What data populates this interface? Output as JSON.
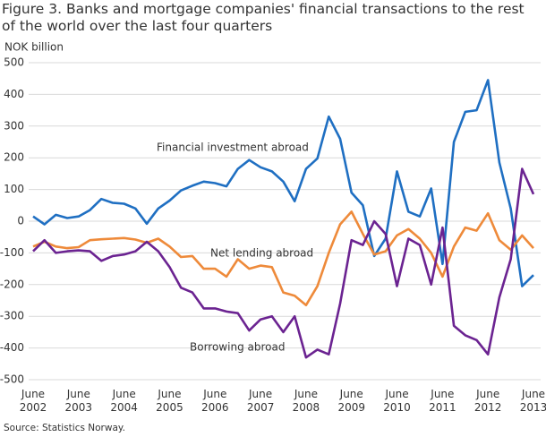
{
  "chart_data": {
    "type": "line",
    "title": "Figure 3. Banks and mortgage companies' financial transactions to the rest of the world over the last four quarters",
    "y_label": "NOK billion",
    "source": "Source: Statistics Norway.",
    "categories": [
      "June 2002",
      null,
      null,
      null,
      "June 2003",
      null,
      null,
      null,
      "June 2004",
      null,
      null,
      null,
      "June 2005",
      null,
      null,
      null,
      "June 2006",
      null,
      null,
      null,
      "June 2007",
      null,
      null,
      null,
      "June 2008",
      null,
      null,
      null,
      "June 2009",
      null,
      null,
      null,
      "June 2010",
      null,
      null,
      null,
      "June 2011",
      null,
      null,
      null,
      "June 2012",
      null,
      null,
      null,
      "June 2013"
    ],
    "series": [
      {
        "name": "Financial investment abroad",
        "color": "#1f6fc2",
        "values": [
          15,
          -10,
          20,
          10,
          15,
          35,
          70,
          58,
          55,
          40,
          -8,
          40,
          65,
          97,
          112,
          125,
          120,
          110,
          165,
          193,
          170,
          157,
          125,
          63,
          165,
          198,
          330,
          260,
          90,
          50,
          -110,
          -55,
          157,
          30,
          15,
          103,
          -135,
          250,
          345,
          350,
          445,
          185,
          40,
          -205,
          -170
        ]
      },
      {
        "name": "Net lending abroad",
        "color": "#ee8a3a",
        "values": [
          -80,
          -65,
          -80,
          -85,
          -82,
          -60,
          -57,
          -55,
          -53,
          -58,
          -68,
          -55,
          -80,
          -113,
          -110,
          -150,
          -150,
          -175,
          -120,
          -150,
          -140,
          -145,
          -225,
          -235,
          -265,
          -205,
          -100,
          -10,
          30,
          -40,
          -105,
          -95,
          -45,
          -25,
          -55,
          -100,
          -175,
          -80,
          -20,
          -30,
          25,
          -60,
          -90,
          -45,
          -85
        ]
      },
      {
        "name": "Borrowing abroad",
        "color": "#6b2391",
        "values": [
          -95,
          -60,
          -100,
          -95,
          -92,
          -95,
          -125,
          -110,
          -105,
          -95,
          -65,
          -95,
          -145,
          -210,
          -225,
          -275,
          -275,
          -285,
          -290,
          -345,
          -310,
          -300,
          -350,
          -300,
          -430,
          -405,
          -420,
          -260,
          -60,
          -75,
          0,
          -40,
          -205,
          -55,
          -75,
          -200,
          -20,
          -330,
          -360,
          -375,
          -420,
          -240,
          -120,
          165,
          85
        ]
      }
    ],
    "ylim": [
      -500,
      500
    ],
    "yticks": [
      -500,
      -400,
      -300,
      -200,
      -100,
      0,
      100,
      200,
      300,
      400,
      500
    ],
    "grid": true
  }
}
